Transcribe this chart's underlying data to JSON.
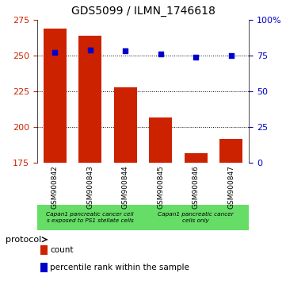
{
  "title": "GDS5099 / ILMN_1746618",
  "categories": [
    "GSM900842",
    "GSM900843",
    "GSM900844",
    "GSM900845",
    "GSM900846",
    "GSM900847"
  ],
  "counts": [
    269,
    264,
    228,
    207,
    182,
    192
  ],
  "percentile_ranks": [
    77,
    79,
    78,
    76,
    74,
    75
  ],
  "bar_color": "#CC2200",
  "dot_color": "#0000CC",
  "ylim_left": [
    175,
    275
  ],
  "ylim_right": [
    0,
    100
  ],
  "yticks_left": [
    175,
    200,
    225,
    250,
    275
  ],
  "yticks_right": [
    0,
    25,
    50,
    75,
    100
  ],
  "ytick_labels_right": [
    "0",
    "25",
    "50",
    "75",
    "100%"
  ],
  "grid_values": [
    200,
    225,
    250
  ],
  "group1_label_line1": "Capan1 pancreatic cancer cell",
  "group1_label_line2": "s exposed to PS1 stellate cells",
  "group2_label_line1": "Capan1 pancreatic cancer",
  "group2_label_line2": "cells only",
  "green_color": "#66DD66",
  "gray_color": "#C8C8C8",
  "legend_count_label": "count",
  "legend_pct_label": "percentile rank within the sample",
  "protocol_label": "protocol"
}
